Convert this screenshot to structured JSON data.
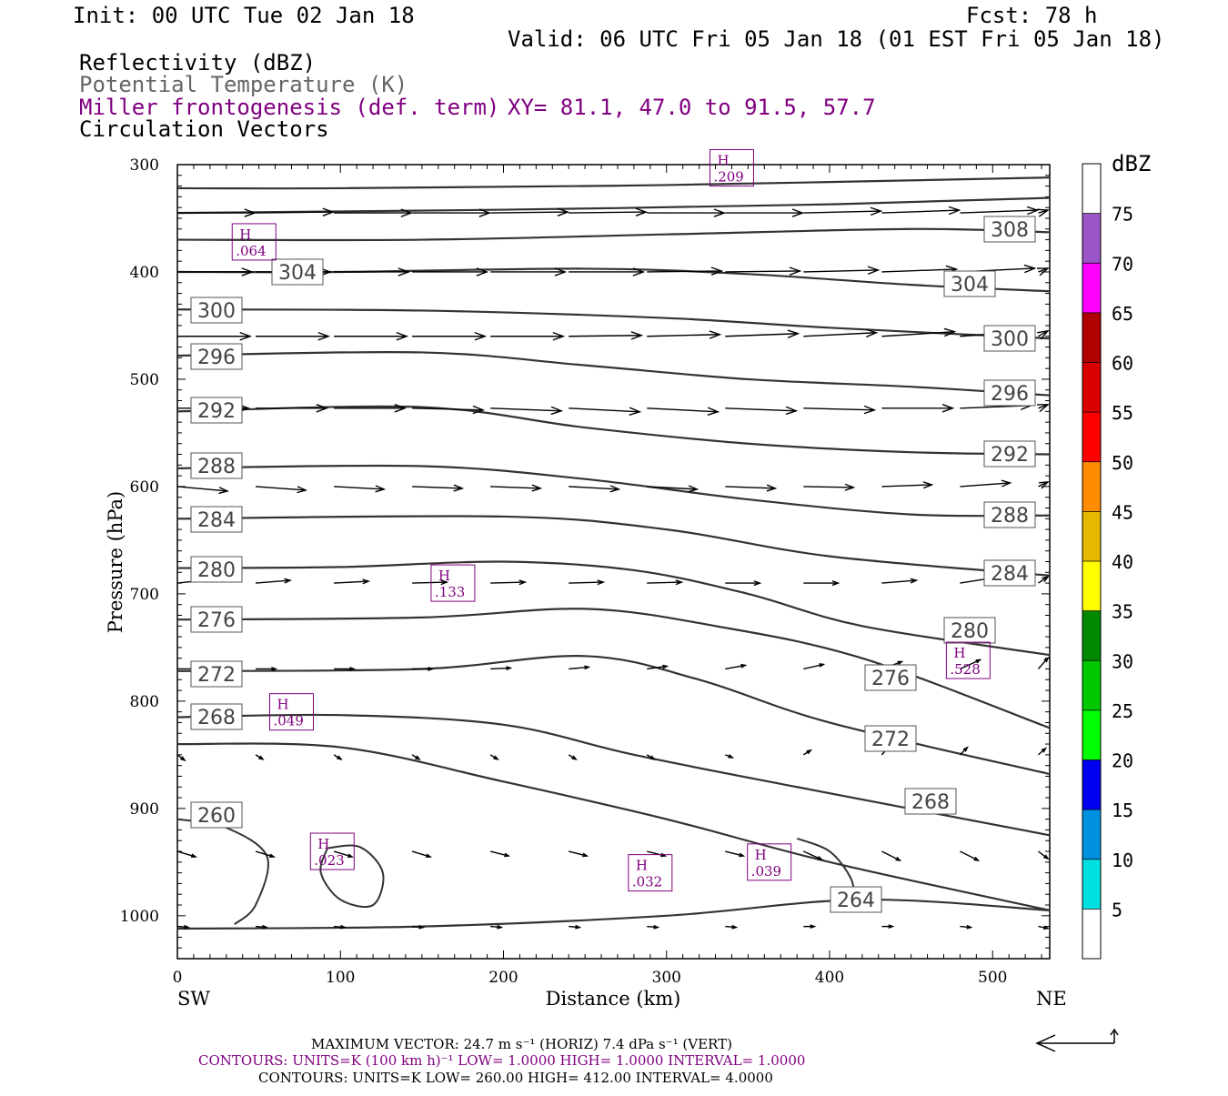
{
  "header": {
    "init": "Init: 00 UTC Tue 02 Jan 18",
    "fcst": "Fcst:   78 h",
    "valid": "Valid: 06 UTC Fri 05 Jan 18 (01 EST Fri 05 Jan 18)",
    "field1": "Reflectivity (dBZ)",
    "field2": "Potential Temperature (K)",
    "field3": "Miller frontogenesis (def. term)",
    "xy": "XY=  81.1, 47.0 to  91.5, 57.7",
    "field4": "Circulation Vectors"
  },
  "footer": {
    "max_vector": "MAXIMUM VECTOR:  24.7 m s⁻¹ (HORIZ)          7.4 dPa s⁻¹ (VERT)",
    "contours1": "CONTOURS:  UNITS=K (100 km h)⁻¹  LOW=   1.0000        HIGH=   1.0000        INTERVAL=    1.0000",
    "contours2": "CONTOURS:  UNITS=K  LOW=   260.00          HIGH=   412.00          INTERVAL=    4.0000"
  },
  "colorbar": {
    "title": "dBZ",
    "labels": [
      "5",
      "10",
      "15",
      "20",
      "25",
      "30",
      "35",
      "40",
      "45",
      "50",
      "55",
      "60",
      "65",
      "70",
      "75"
    ],
    "colors": [
      "#ffffff",
      "#00e0e0",
      "#0090e0",
      "#0000f0",
      "#00ff00",
      "#00c800",
      "#008800",
      "#ffff00",
      "#e6b800",
      "#ff8c00",
      "#ff0000",
      "#d80000",
      "#b00000",
      "#ff00ff",
      "#9955c8",
      "#ffffff"
    ]
  },
  "chart_data": {
    "type": "cross-section",
    "xlabel": "Distance (km)",
    "ylabel": "Pressure (hPa)",
    "xlim": [
      0,
      535
    ],
    "ylim": [
      1040,
      300
    ],
    "x_ticks": [
      0,
      100,
      200,
      300,
      400,
      500
    ],
    "y_ticks": [
      300,
      400,
      500,
      600,
      700,
      800,
      900,
      1000
    ],
    "x_end_labels": {
      "left": "SW",
      "right": "NE"
    },
    "theta_contours": [
      {
        "label": "308",
        "points": [
          [
            0,
            322
          ],
          [
            100,
            322
          ],
          [
            300,
            319
          ],
          [
            535,
            312
          ]
        ]
      },
      {
        "label": "",
        "points": [
          [
            0,
            345
          ],
          [
            200,
            342
          ],
          [
            400,
            337
          ],
          [
            535,
            331
          ]
        ]
      },
      {
        "label": "",
        "points": [
          [
            0,
            370
          ],
          [
            150,
            370
          ],
          [
            300,
            365
          ],
          [
            450,
            360
          ],
          [
            535,
            363
          ]
        ]
      },
      {
        "label": "304",
        "points": [
          [
            0,
            400
          ],
          [
            100,
            400
          ],
          [
            250,
            397
          ],
          [
            350,
            402
          ],
          [
            450,
            412
          ],
          [
            535,
            418
          ]
        ]
      },
      {
        "label": "300",
        "points": [
          [
            0,
            435
          ],
          [
            150,
            436
          ],
          [
            300,
            443
          ],
          [
            400,
            452
          ],
          [
            535,
            462
          ]
        ]
      },
      {
        "label": "296",
        "points": [
          [
            0,
            478
          ],
          [
            150,
            475
          ],
          [
            250,
            487
          ],
          [
            350,
            500
          ],
          [
            450,
            507
          ],
          [
            535,
            515
          ]
        ]
      },
      {
        "label": "292",
        "points": [
          [
            0,
            530
          ],
          [
            150,
            526
          ],
          [
            250,
            545
          ],
          [
            350,
            560
          ],
          [
            450,
            568
          ],
          [
            535,
            570
          ]
        ]
      },
      {
        "label": "288",
        "points": [
          [
            0,
            583
          ],
          [
            150,
            581
          ],
          [
            250,
            593
          ],
          [
            350,
            612
          ],
          [
            450,
            626
          ],
          [
            535,
            627
          ]
        ]
      },
      {
        "label": "284",
        "points": [
          [
            0,
            630
          ],
          [
            200,
            628
          ],
          [
            300,
            640
          ],
          [
            400,
            665
          ],
          [
            535,
            683
          ]
        ]
      },
      {
        "label": "280",
        "points": [
          [
            0,
            676
          ],
          [
            100,
            675
          ],
          [
            200,
            670
          ],
          [
            280,
            678
          ],
          [
            350,
            700
          ],
          [
            420,
            730
          ],
          [
            535,
            757
          ]
        ]
      },
      {
        "label": "276",
        "points": [
          [
            0,
            724
          ],
          [
            150,
            722
          ],
          [
            250,
            714
          ],
          [
            330,
            730
          ],
          [
            420,
            760
          ],
          [
            535,
            825
          ]
        ]
      },
      {
        "label": "272",
        "points": [
          [
            0,
            772
          ],
          [
            150,
            770
          ],
          [
            250,
            758
          ],
          [
            320,
            780
          ],
          [
            400,
            820
          ],
          [
            535,
            868
          ]
        ]
      },
      {
        "label": "268",
        "points": [
          [
            0,
            815
          ],
          [
            100,
            813
          ],
          [
            200,
            822
          ],
          [
            280,
            850
          ],
          [
            380,
            880
          ],
          [
            535,
            925
          ]
        ]
      },
      {
        "label": "264",
        "points": [
          [
            0,
            840
          ],
          [
            100,
            843
          ],
          [
            200,
            875
          ],
          [
            300,
            910
          ],
          [
            400,
            950
          ],
          [
            535,
            995
          ]
        ]
      },
      {
        "label": "",
        "points": [
          [
            0,
            1012
          ],
          [
            150,
            1010
          ],
          [
            300,
            1000
          ],
          [
            420,
            985
          ],
          [
            535,
            995
          ]
        ]
      }
    ],
    "isotherm_260": {
      "label": "260"
    },
    "frontogenesis_maxima": [
      {
        "label": "H",
        "value": ".209",
        "x": 340,
        "p": 303
      },
      {
        "label": "H",
        "value": ".064",
        "x": 47,
        "p": 372
      },
      {
        "label": "H",
        "value": ".133",
        "x": 169,
        "p": 690
      },
      {
        "label": "H",
        "value": ".528",
        "x": 485,
        "p": 762
      },
      {
        "label": "H",
        "value": ".049",
        "x": 70,
        "p": 810
      },
      {
        "label": "H",
        "value": ".023",
        "x": 95,
        "p": 940
      },
      {
        "label": "H",
        "value": ".032",
        "x": 290,
        "p": 960
      },
      {
        "label": "H",
        "value": ".039",
        "x": 363,
        "p": 950
      }
    ],
    "max_vector_horiz": 24.7,
    "max_vector_vert": 7.4
  }
}
